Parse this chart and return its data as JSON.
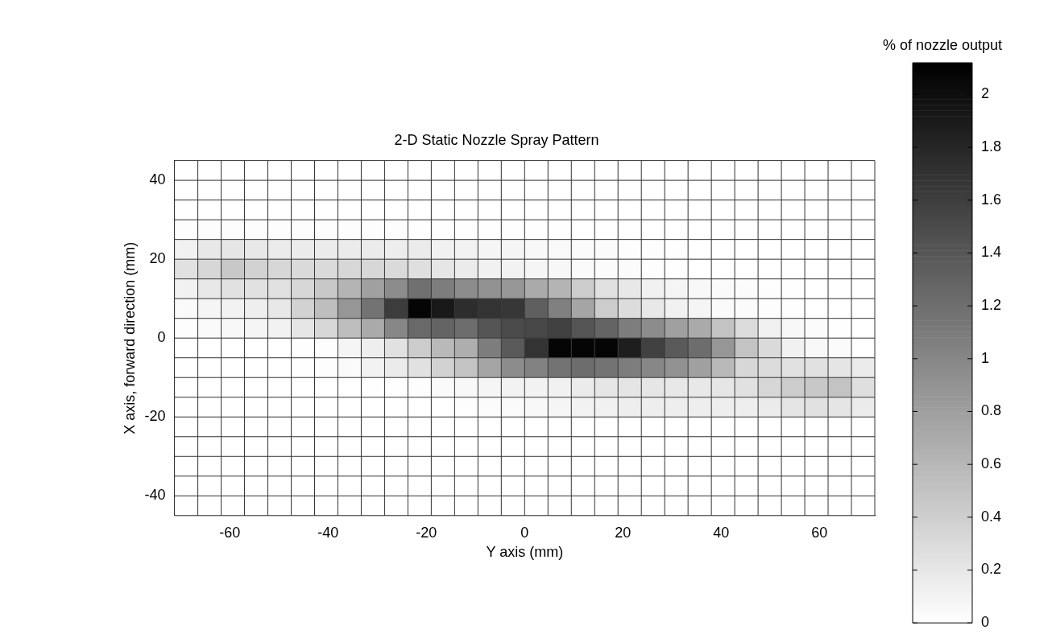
{
  "chart_data": {
    "type": "heatmap",
    "title": "2-D Static Nozzle Spray Pattern",
    "xlabel": "Y axis (mm)",
    "ylabel": "X axis, forward direction (mm)",
    "clabel": "% of nozzle output",
    "xlim": [
      -71.25,
      71.25
    ],
    "xticks": [
      -60,
      -40,
      -20,
      0,
      20,
      40,
      60
    ],
    "ylim": [
      -45,
      45
    ],
    "yticks": [
      -40,
      -20,
      0,
      20,
      40
    ],
    "grid": true,
    "clim": [
      0,
      2.12
    ],
    "cticks": [
      0,
      0.2,
      0.4,
      0.6,
      0.8,
      1,
      1.2,
      1.4,
      1.6,
      1.8,
      2
    ],
    "cells": [
      [
        0,
        0,
        0,
        0,
        0,
        0,
        0,
        0,
        0,
        0,
        0,
        0,
        0,
        0,
        0,
        0,
        0,
        0,
        0,
        0,
        0,
        0,
        0,
        0,
        0,
        0,
        0,
        0,
        0,
        0
      ],
      [
        0,
        0,
        0,
        0,
        0,
        0,
        0,
        0,
        0,
        0,
        0,
        0,
        0,
        0,
        0,
        0,
        0,
        0,
        0,
        0,
        0,
        0,
        0,
        0,
        0,
        0,
        0,
        0,
        0,
        0
      ],
      [
        0,
        0,
        0,
        0,
        0,
        0,
        0,
        0,
        0,
        0,
        0,
        0,
        0,
        0,
        0,
        0,
        0,
        0,
        0,
        0,
        0,
        0,
        0,
        0,
        0,
        0,
        0,
        0,
        0,
        0
      ],
      [
        0.02,
        0.02,
        0.02,
        0.02,
        0.02,
        0.02,
        0.02,
        0.02,
        0.02,
        0.02,
        0.01,
        0.01,
        0.01,
        0.01,
        0.01,
        0.01,
        0.01,
        0,
        0,
        0,
        0,
        0,
        0,
        0,
        0,
        0,
        0,
        0,
        0,
        0
      ],
      [
        0.12,
        0.19,
        0.22,
        0.19,
        0.17,
        0.17,
        0.17,
        0.17,
        0.17,
        0.15,
        0.17,
        0.12,
        0.11,
        0.08,
        0.08,
        0.06,
        0.05,
        0.03,
        0.03,
        0.02,
        0.02,
        0.01,
        0,
        0,
        0,
        0,
        0,
        0,
        0,
        0
      ],
      [
        0.25,
        0.33,
        0.46,
        0.37,
        0.33,
        0.31,
        0.31,
        0.33,
        0.33,
        0.31,
        0.27,
        0.21,
        0.17,
        0.12,
        0.11,
        0.08,
        0.07,
        0.04,
        0.03,
        0.03,
        0.02,
        0.01,
        0,
        0,
        0,
        0,
        0,
        0,
        0,
        0
      ],
      [
        0.12,
        0.19,
        0.25,
        0.25,
        0.25,
        0.33,
        0.46,
        0.62,
        0.79,
        0.96,
        1.19,
        1.08,
        0.96,
        0.91,
        0.87,
        0.71,
        0.62,
        0.42,
        0.25,
        0.19,
        0.12,
        0.08,
        0.06,
        0.04,
        0.03,
        0.02,
        0.01,
        0,
        0,
        0
      ],
      [
        0.04,
        0.08,
        0.11,
        0.14,
        0.19,
        0.37,
        0.54,
        0.87,
        1.16,
        1.62,
        2.08,
        1.91,
        1.75,
        1.7,
        1.66,
        1.33,
        1.06,
        0.75,
        0.42,
        0.29,
        0.19,
        0.12,
        0.08,
        0.04,
        0.03,
        0.02,
        0.01,
        0,
        0,
        0
      ],
      [
        0.02,
        0.04,
        0.06,
        0.08,
        0.11,
        0.21,
        0.33,
        0.54,
        0.71,
        1.0,
        1.25,
        1.29,
        1.21,
        1.41,
        1.5,
        1.52,
        1.58,
        1.41,
        1.29,
        1.08,
        0.96,
        0.79,
        0.71,
        0.5,
        0.29,
        0.12,
        0.06,
        0.03,
        0.01,
        0
      ],
      [
        0,
        0,
        0,
        0,
        0,
        0.01,
        0.02,
        0.08,
        0.14,
        0.25,
        0.42,
        0.58,
        0.67,
        1.08,
        1.37,
        1.7,
        2.08,
        2.08,
        2.08,
        1.87,
        1.58,
        1.37,
        1.21,
        0.87,
        0.5,
        0.31,
        0.12,
        0.06,
        0.03,
        0
      ],
      [
        0,
        0,
        0,
        0,
        0,
        0.01,
        0.02,
        0.04,
        0.11,
        0.17,
        0.25,
        0.37,
        0.5,
        0.75,
        0.96,
        1.04,
        1.16,
        1.21,
        1.16,
        1.08,
        1.0,
        0.91,
        0.79,
        0.58,
        0.33,
        0.29,
        0.25,
        0.25,
        0.22,
        0.17
      ],
      [
        0,
        0,
        0,
        0,
        0,
        0,
        0,
        0,
        0.01,
        0.01,
        0.02,
        0.04,
        0.06,
        0.08,
        0.11,
        0.11,
        0.12,
        0.17,
        0.21,
        0.22,
        0.21,
        0.19,
        0.19,
        0.21,
        0.25,
        0.33,
        0.42,
        0.46,
        0.5,
        0.27
      ],
      [
        0,
        0,
        0,
        0,
        0,
        0,
        0,
        0,
        0,
        0,
        0,
        0,
        0.02,
        0.03,
        0.04,
        0.06,
        0.08,
        0.11,
        0.12,
        0.14,
        0.14,
        0.14,
        0.14,
        0.14,
        0.14,
        0.17,
        0.22,
        0.25,
        0.22,
        0.17
      ],
      [
        0,
        0,
        0,
        0,
        0,
        0,
        0,
        0,
        0,
        0,
        0,
        0,
        0,
        0,
        0,
        0,
        0,
        0,
        0,
        0,
        0,
        0,
        0,
        0,
        0,
        0,
        0,
        0,
        0,
        0
      ],
      [
        0,
        0,
        0,
        0,
        0,
        0,
        0,
        0,
        0,
        0,
        0,
        0,
        0,
        0,
        0,
        0,
        0,
        0,
        0,
        0,
        0,
        0,
        0,
        0,
        0,
        0,
        0,
        0,
        0,
        0
      ],
      [
        0,
        0,
        0,
        0,
        0,
        0,
        0,
        0,
        0,
        0,
        0,
        0,
        0,
        0,
        0,
        0,
        0,
        0,
        0,
        0,
        0,
        0,
        0,
        0,
        0,
        0,
        0,
        0,
        0,
        0
      ],
      [
        0,
        0,
        0,
        0,
        0,
        0,
        0,
        0,
        0,
        0,
        0,
        0,
        0,
        0,
        0,
        0,
        0,
        0,
        0,
        0,
        0,
        0,
        0,
        0,
        0,
        0,
        0,
        0,
        0,
        0
      ],
      [
        0,
        0,
        0,
        0,
        0,
        0,
        0,
        0,
        0,
        0,
        0,
        0,
        0,
        0,
        0,
        0,
        0,
        0,
        0,
        0,
        0,
        0,
        0,
        0,
        0,
        0,
        0,
        0,
        0,
        0
      ]
    ]
  }
}
